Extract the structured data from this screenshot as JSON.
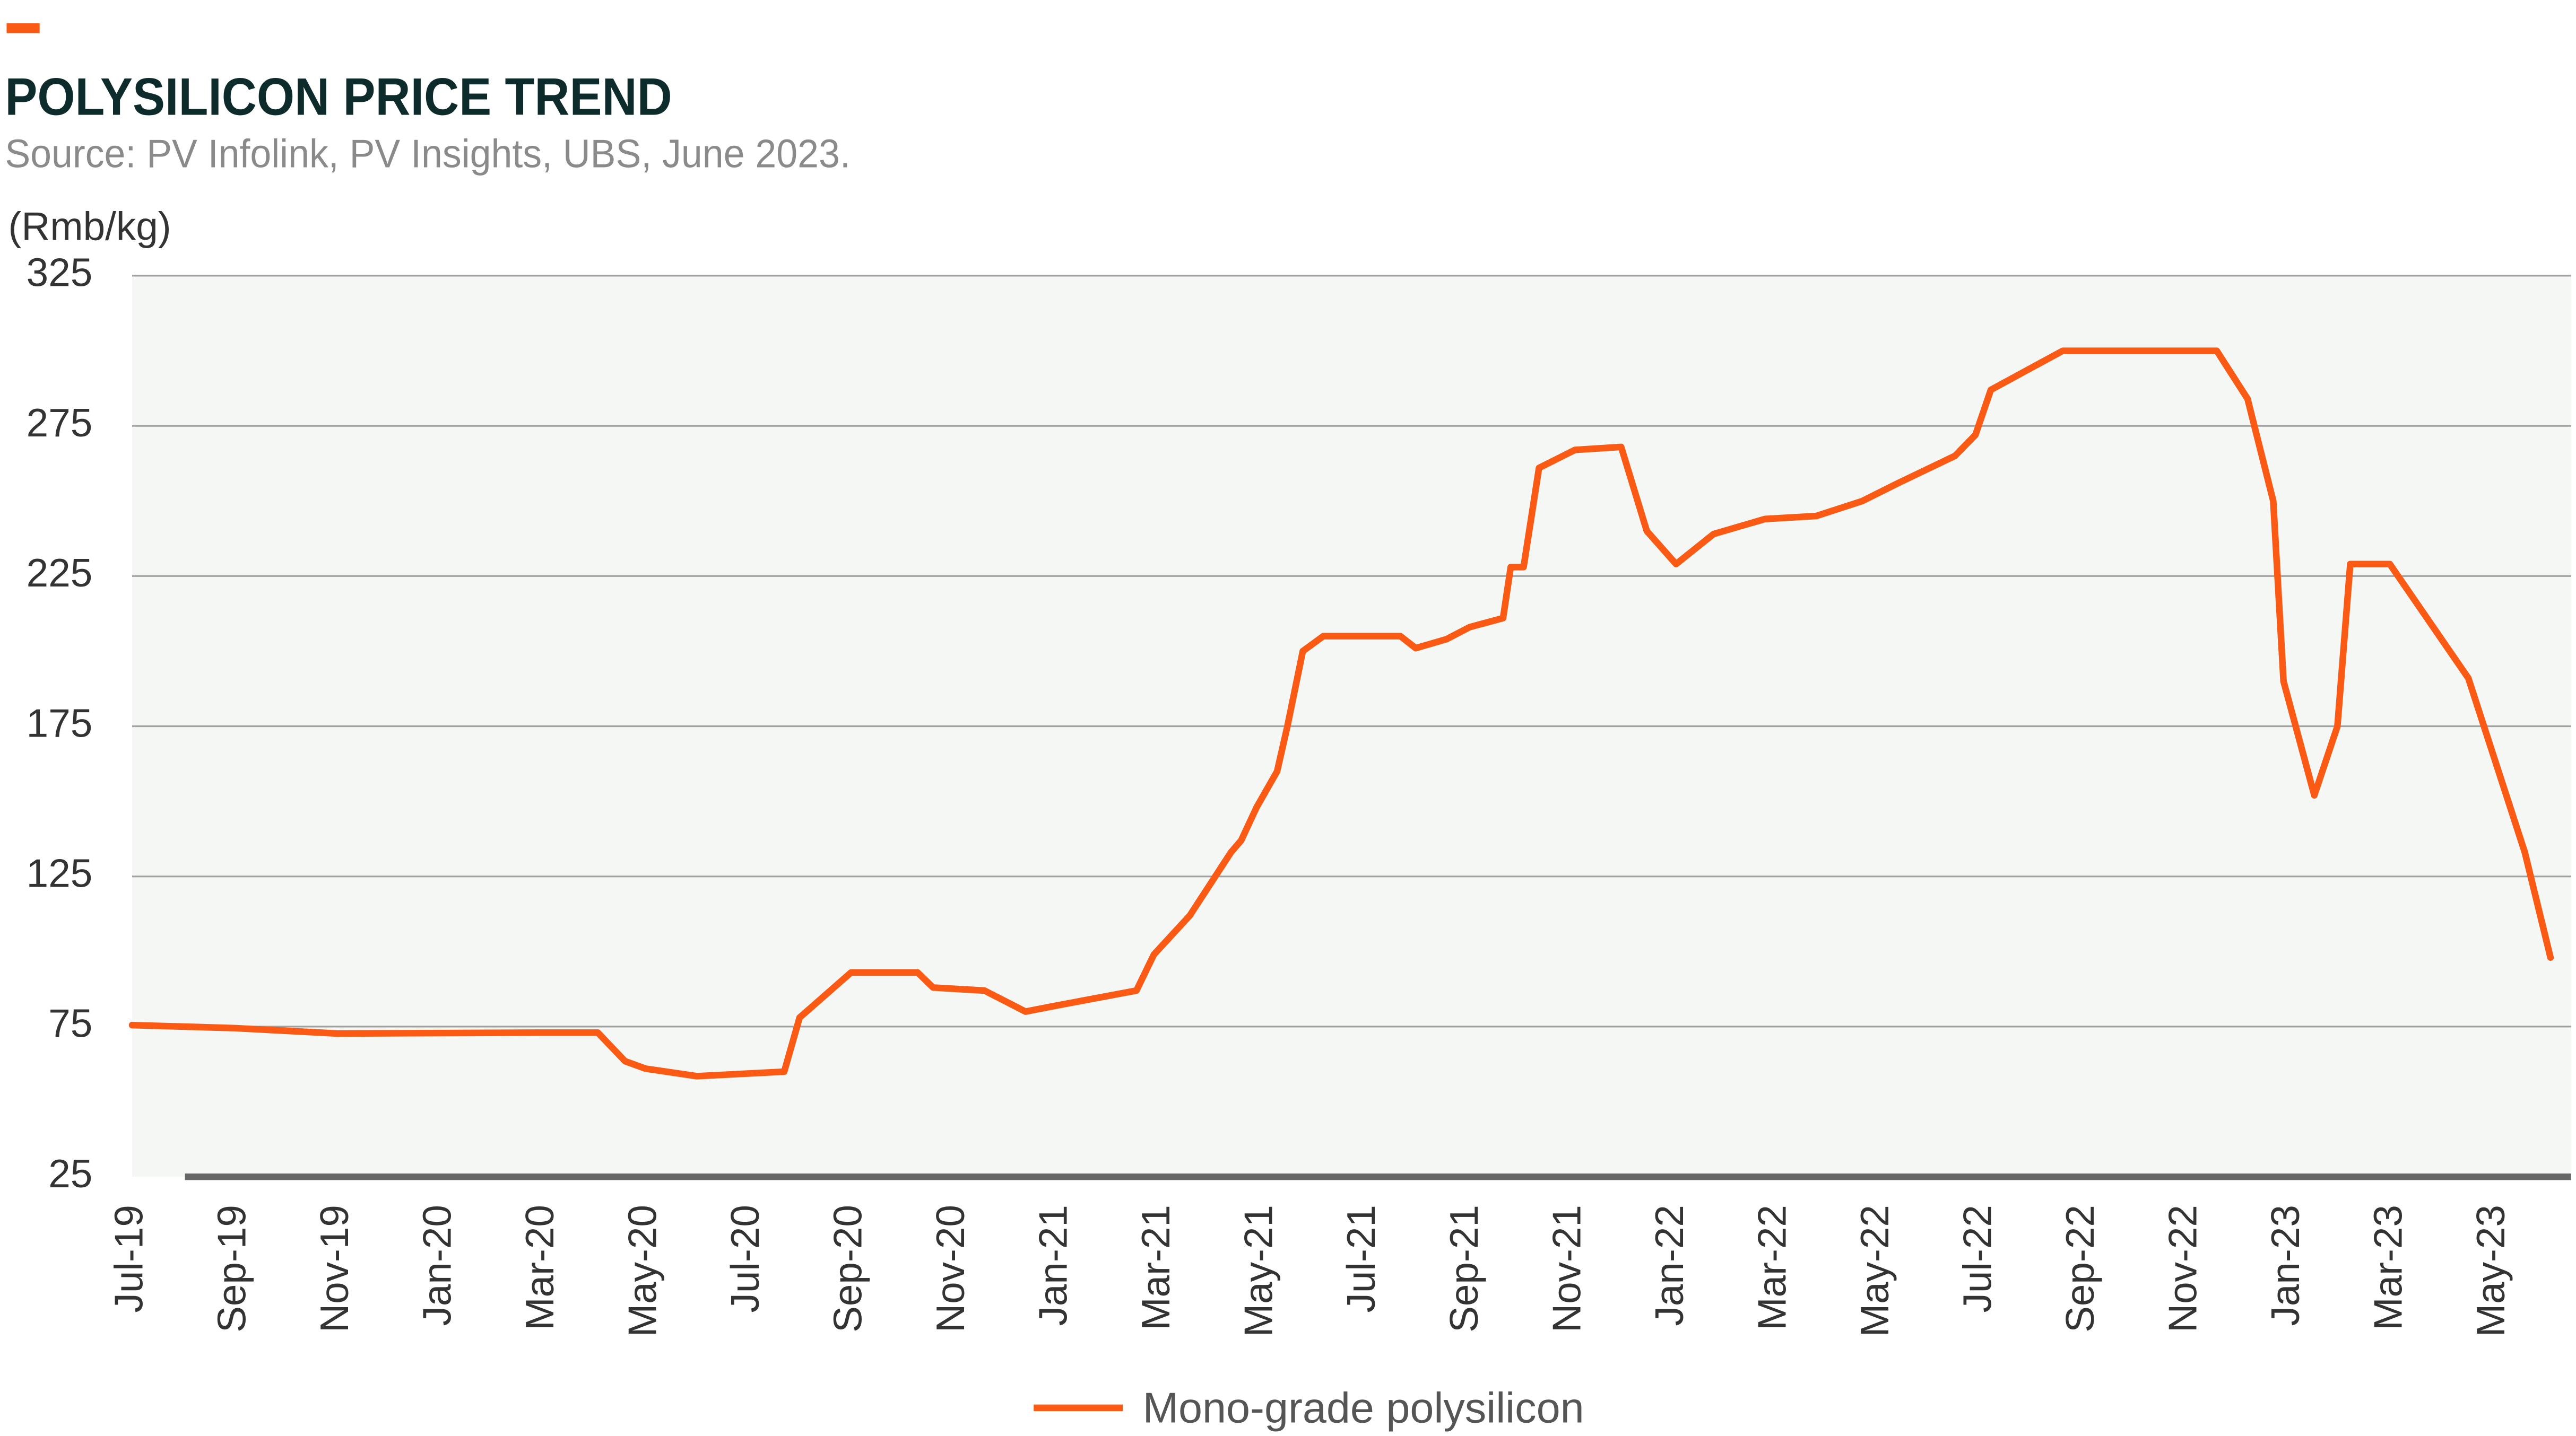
{
  "chart_data": {
    "type": "line",
    "title": "POLYSILICON PRICE TREND",
    "subtitle": "Source: PV Infolink, PV Insights, UBS, June 2023.",
    "y_label": "(Rmb/kg)",
    "xlim": [
      0,
      47.5
    ],
    "xticks": [
      {
        "value": 0,
        "label": "Jul-19"
      },
      {
        "value": 2,
        "label": "Sep-19"
      },
      {
        "value": 4,
        "label": "Nov-19"
      },
      {
        "value": 6,
        "label": "Jan-20"
      },
      {
        "value": 8,
        "label": "Mar-20"
      },
      {
        "value": 10,
        "label": "May-20"
      },
      {
        "value": 12,
        "label": "Jul-20"
      },
      {
        "value": 14,
        "label": "Sep-20"
      },
      {
        "value": 16,
        "label": "Nov-20"
      },
      {
        "value": 18,
        "label": "Jan-21"
      },
      {
        "value": 20,
        "label": "Mar-21"
      },
      {
        "value": 22,
        "label": "May-21"
      },
      {
        "value": 24,
        "label": "Jul-21"
      },
      {
        "value": 26,
        "label": "Sep-21"
      },
      {
        "value": 28,
        "label": "Nov-21"
      },
      {
        "value": 30,
        "label": "Jan-22"
      },
      {
        "value": 32,
        "label": "Mar-22"
      },
      {
        "value": 34,
        "label": "May-22"
      },
      {
        "value": 36,
        "label": "Jul-22"
      },
      {
        "value": 38,
        "label": "Sep-22"
      },
      {
        "value": 40,
        "label": "Nov-22"
      },
      {
        "value": 42,
        "label": "Jan-23"
      },
      {
        "value": 44,
        "label": "Mar-23"
      },
      {
        "value": 46,
        "label": "May-23"
      }
    ],
    "ylim": [
      25,
      325
    ],
    "yticks": [
      25,
      75,
      125,
      175,
      225,
      275,
      325
    ],
    "grid": true,
    "x": [
      0,
      2,
      4,
      8,
      9.07,
      9.6,
      10,
      11,
      12.7,
      13,
      14,
      15.3,
      15.6,
      16.6,
      17.4,
      18,
      19.56,
      19.9,
      20.6,
      21.4,
      21.6,
      21.9,
      22.3,
      22.5,
      22.8,
      23.2,
      24.7,
      25,
      25.6,
      26.05,
      26.7,
      26.85,
      27.1,
      27.4,
      28.1,
      29,
      29.5,
      30.07,
      30.8,
      31.8,
      32.8,
      33.7,
      34.4,
      35.5,
      35.9,
      36.2,
      37.6,
      40.6,
      41.2,
      41.7,
      41.9,
      42.5,
      42.95,
      43.2,
      43.97,
      45.5,
      46.6,
      47.1
    ],
    "series": [
      {
        "name": "Mono-grade polysilicon",
        "color": "#fa5a14",
        "values": [
          75.5,
          74.5,
          72.7,
          73,
          73,
          63.5,
          61,
          58.5,
          60,
          78,
          93,
          93,
          88,
          87,
          80,
          82,
          87,
          99,
          112,
          133,
          137,
          148,
          160,
          175,
          200,
          205,
          205,
          201,
          204,
          208,
          211,
          228,
          228,
          261,
          267,
          268,
          240,
          229,
          239,
          244,
          245,
          250,
          256,
          265,
          272,
          287,
          300,
          300,
          284,
          250,
          190,
          152,
          175,
          229,
          229,
          191,
          133,
          98
        ]
      }
    ]
  }
}
